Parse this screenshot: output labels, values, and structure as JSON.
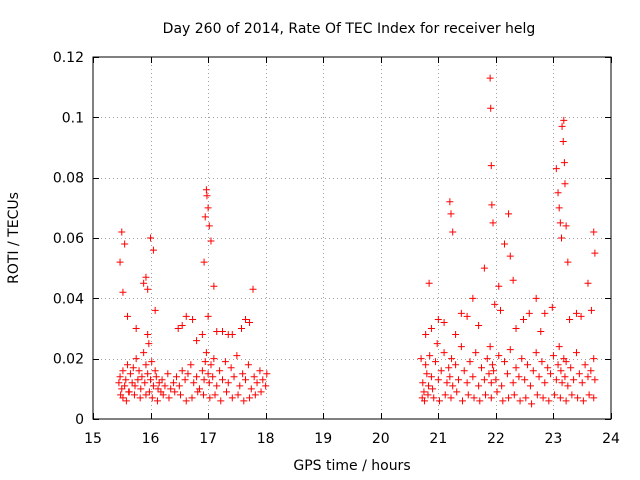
{
  "chart_data": {
    "type": "scatter",
    "title": "Day 260 of 2014, Rate Of TEC Index for receiver helg",
    "xlabel": "GPS time / hours",
    "ylabel": "ROTI / TECUs",
    "xlim": [
      15,
      24
    ],
    "ylim": [
      0,
      0.12
    ],
    "xticks": [
      "15",
      "16",
      "17",
      "18",
      "19",
      "20",
      "21",
      "22",
      "23",
      "24"
    ],
    "yticks": [
      "0",
      "0.02",
      "0.04",
      "0.06",
      "0.08",
      "0.1",
      "0.12"
    ],
    "grid": true,
    "marker": "+",
    "color": "#ff0000",
    "series": [
      {
        "name": "ROTI",
        "x": [
          15.45,
          15.47,
          15.5,
          15.52,
          15.55,
          15.57,
          15.6,
          15.62,
          15.65,
          15.68,
          15.7,
          15.73,
          15.75,
          15.78,
          15.8,
          15.83,
          15.85,
          15.88,
          15.9,
          15.92,
          15.95,
          15.97,
          16.0,
          16.02,
          16.05,
          16.08,
          16.1,
          16.13,
          16.15,
          16.18,
          16.2,
          16.25,
          16.3,
          16.35,
          16.4,
          16.45,
          16.5,
          16.55,
          16.6,
          16.65,
          16.7,
          16.75,
          16.8,
          16.85,
          16.9,
          16.93,
          16.95,
          16.97,
          17.0,
          17.02,
          17.05,
          17.08,
          17.1,
          17.15,
          17.2,
          17.25,
          17.3,
          17.35,
          17.4,
          17.45,
          17.5,
          17.55,
          17.6,
          17.65,
          17.7,
          17.75,
          17.8,
          17.85,
          17.9,
          17.95,
          18.0,
          18.02,
          15.48,
          15.52,
          15.58,
          15.63,
          15.72,
          15.82,
          15.92,
          15.98,
          16.03,
          16.12,
          16.22,
          16.32,
          16.42,
          16.52,
          16.62,
          16.72,
          16.82,
          16.92,
          17.03,
          17.12,
          17.22,
          17.32,
          17.42,
          17.52,
          17.62,
          17.72,
          17.82,
          17.92,
          15.5,
          15.55,
          15.88,
          15.92,
          15.95,
          16.0,
          16.05,
          16.48,
          16.62,
          16.73,
          16.8,
          16.93,
          16.95,
          16.97,
          16.98,
          17.0,
          17.02,
          17.05,
          17.1,
          17.25,
          17.42,
          17.58,
          17.72,
          17.78,
          15.47,
          15.52,
          15.6,
          15.75,
          15.95,
          16.08,
          16.55,
          16.9,
          17.0,
          17.15,
          17.35,
          17.65,
          20.7,
          20.73,
          20.75,
          20.78,
          20.8,
          20.83,
          20.85,
          20.88,
          20.9,
          20.95,
          21.0,
          21.05,
          21.1,
          21.15,
          21.18,
          21.2,
          21.23,
          21.25,
          21.3,
          21.35,
          21.4,
          21.45,
          21.5,
          21.55,
          21.6,
          21.65,
          21.7,
          21.75,
          21.8,
          21.85,
          21.88,
          21.9,
          21.92,
          21.94,
          21.96,
          22.0,
          22.05,
          22.1,
          22.15,
          22.2,
          22.25,
          22.3,
          22.35,
          22.4,
          22.45,
          22.5,
          22.55,
          22.6,
          22.65,
          22.7,
          22.75,
          22.8,
          22.85,
          22.9,
          22.95,
          23.0,
          23.05,
          23.08,
          23.1,
          23.13,
          23.15,
          23.18,
          23.2,
          23.22,
          23.25,
          23.3,
          23.35,
          23.4,
          23.45,
          23.5,
          23.55,
          23.6,
          23.65,
          23.7,
          23.72,
          20.72,
          20.76,
          20.82,
          20.92,
          21.02,
          21.12,
          21.22,
          21.32,
          21.42,
          21.52,
          21.62,
          21.72,
          21.82,
          21.92,
          22.02,
          22.12,
          22.22,
          22.32,
          22.42,
          22.52,
          22.62,
          22.72,
          22.82,
          22.92,
          23.02,
          23.12,
          23.22,
          23.32,
          23.42,
          23.52,
          23.62,
          23.7,
          20.84,
          21.0,
          21.2,
          21.22,
          21.25,
          21.4,
          21.6,
          21.8,
          21.9,
          21.91,
          21.92,
          21.93,
          21.95,
          22.05,
          22.15,
          22.22,
          22.25,
          22.3,
          22.7,
          22.85,
          23.05,
          23.08,
          23.1,
          23.12,
          23.14,
          23.15,
          23.17,
          23.18,
          23.19,
          23.2,
          23.22,
          23.25,
          23.4,
          23.6,
          23.7,
          23.72,
          20.78,
          20.88,
          20.98,
          21.1,
          21.3,
          21.5,
          21.7,
          21.98,
          22.08,
          22.35,
          22.48,
          22.58,
          22.78,
          22.98,
          23.28,
          23.48,
          23.66
        ],
        "y": [
          0.012,
          0.014,
          0.01,
          0.016,
          0.011,
          0.013,
          0.018,
          0.009,
          0.015,
          0.012,
          0.017,
          0.011,
          0.02,
          0.013,
          0.016,
          0.01,
          0.014,
          0.022,
          0.012,
          0.018,
          0.015,
          0.025,
          0.013,
          0.019,
          0.011,
          0.016,
          0.014,
          0.01,
          0.012,
          0.009,
          0.013,
          0.011,
          0.015,
          0.01,
          0.012,
          0.014,
          0.011,
          0.016,
          0.013,
          0.015,
          0.018,
          0.012,
          0.014,
          0.01,
          0.016,
          0.013,
          0.019,
          0.022,
          0.015,
          0.012,
          0.018,
          0.014,
          0.02,
          0.011,
          0.016,
          0.013,
          0.019,
          0.012,
          0.017,
          0.014,
          0.021,
          0.011,
          0.015,
          0.013,
          0.018,
          0.01,
          0.014,
          0.012,
          0.016,
          0.013,
          0.011,
          0.015,
          0.008,
          0.007,
          0.006,
          0.009,
          0.008,
          0.007,
          0.008,
          0.009,
          0.007,
          0.006,
          0.008,
          0.007,
          0.009,
          0.008,
          0.006,
          0.007,
          0.009,
          0.008,
          0.007,
          0.008,
          0.006,
          0.009,
          0.007,
          0.008,
          0.006,
          0.007,
          0.008,
          0.009,
          0.062,
          0.058,
          0.045,
          0.047,
          0.043,
          0.06,
          0.056,
          0.03,
          0.034,
          0.033,
          0.026,
          0.052,
          0.067,
          0.076,
          0.074,
          0.07,
          0.064,
          0.059,
          0.044,
          0.029,
          0.028,
          0.03,
          0.032,
          0.043,
          0.052,
          0.042,
          0.034,
          0.03,
          0.028,
          0.036,
          0.031,
          0.028,
          0.034,
          0.029,
          0.028,
          0.033,
          0.02,
          0.012,
          0.009,
          0.018,
          0.015,
          0.011,
          0.021,
          0.014,
          0.01,
          0.019,
          0.013,
          0.016,
          0.022,
          0.012,
          0.017,
          0.014,
          0.02,
          0.011,
          0.018,
          0.013,
          0.024,
          0.016,
          0.012,
          0.019,
          0.014,
          0.022,
          0.011,
          0.017,
          0.013,
          0.02,
          0.015,
          0.024,
          0.012,
          0.018,
          0.016,
          0.013,
          0.021,
          0.011,
          0.019,
          0.015,
          0.023,
          0.012,
          0.017,
          0.014,
          0.02,
          0.013,
          0.018,
          0.011,
          0.016,
          0.022,
          0.014,
          0.019,
          0.012,
          0.017,
          0.015,
          0.021,
          0.013,
          0.018,
          0.024,
          0.016,
          0.012,
          0.02,
          0.014,
          0.019,
          0.011,
          0.017,
          0.013,
          0.022,
          0.015,
          0.012,
          0.018,
          0.014,
          0.016,
          0.02,
          0.013,
          0.007,
          0.006,
          0.008,
          0.007,
          0.006,
          0.008,
          0.007,
          0.009,
          0.006,
          0.008,
          0.007,
          0.006,
          0.008,
          0.007,
          0.009,
          0.006,
          0.007,
          0.008,
          0.006,
          0.007,
          0.005,
          0.008,
          0.007,
          0.006,
          0.008,
          0.007,
          0.006,
          0.008,
          0.007,
          0.006,
          0.008,
          0.007,
          0.045,
          0.033,
          0.072,
          0.068,
          0.062,
          0.035,
          0.04,
          0.05,
          0.113,
          0.103,
          0.084,
          0.071,
          0.065,
          0.044,
          0.058,
          0.068,
          0.054,
          0.046,
          0.04,
          0.035,
          0.083,
          0.075,
          0.07,
          0.065,
          0.06,
          0.097,
          0.092,
          0.099,
          0.085,
          0.078,
          0.064,
          0.052,
          0.035,
          0.045,
          0.062,
          0.055,
          0.028,
          0.03,
          0.025,
          0.032,
          0.028,
          0.034,
          0.031,
          0.038,
          0.036,
          0.03,
          0.033,
          0.035,
          0.029,
          0.037,
          0.033,
          0.034,
          0.036
        ]
      }
    ]
  }
}
